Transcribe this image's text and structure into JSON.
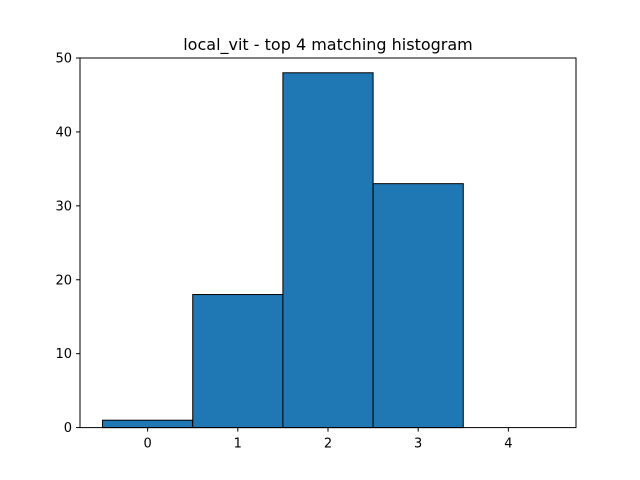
{
  "chart_data": {
    "type": "bar",
    "title": "local_vit - top 4 matching histogram",
    "xlabel": "",
    "ylabel": "",
    "categories": [
      "0",
      "1",
      "2",
      "3",
      "4"
    ],
    "x": [
      0,
      1,
      2,
      3,
      4
    ],
    "values": [
      1,
      18,
      48,
      33,
      0
    ],
    "xlim": [
      -0.75,
      4.75
    ],
    "ylim": [
      0,
      50
    ],
    "yticks": [
      0,
      10,
      20,
      30,
      40,
      50
    ],
    "bar_color": "#1f77b4",
    "edge_color": "#000000",
    "grid": false,
    "legend": "none"
  }
}
